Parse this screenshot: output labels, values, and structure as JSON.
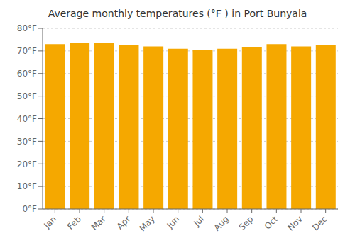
{
  "chart_data": {
    "type": "bar",
    "title": "Average monthly temperatures (°F ) in Port Bunyala",
    "categories": [
      "Jan",
      "Feb",
      "Mar",
      "Apr",
      "May",
      "Jun",
      "Jul",
      "Aug",
      "Sep",
      "Oct",
      "Nov",
      "Dec"
    ],
    "values": [
      73,
      73.5,
      73.5,
      72.5,
      72,
      71,
      70.5,
      71,
      71.5,
      73,
      72,
      72.5
    ],
    "color": "#F5A800",
    "ylim": [
      0,
      80
    ],
    "yticks": [
      {
        "value": 0,
        "label": "0°F"
      },
      {
        "value": 10,
        "label": "10°F"
      },
      {
        "value": 20,
        "label": "20°F"
      },
      {
        "value": 30,
        "label": "30°F"
      },
      {
        "value": 40,
        "label": "40°F"
      },
      {
        "value": 50,
        "label": "50°F"
      },
      {
        "value": 60,
        "label": "60°F"
      },
      {
        "value": 70,
        "label": "70°F"
      },
      {
        "value": 80,
        "label": "80°F"
      }
    ],
    "grid": true
  }
}
